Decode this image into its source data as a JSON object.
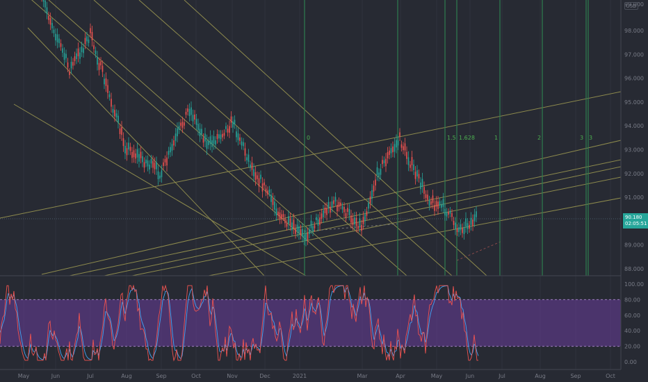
{
  "currency": "USD",
  "price_tag": {
    "price": "90.180",
    "countdown": "02:05:51"
  },
  "colors": {
    "bg": "#272a33",
    "trend": "#8d8a4d",
    "fib": "#2e7d4f",
    "up": "#26a69a",
    "down": "#ef5350",
    "stoch_k": "#ef5350",
    "stoch_d": "#42a5f5",
    "band": "#6a3d9a"
  },
  "price_axis": {
    "ticks": [
      "88.000",
      "89.000",
      "90.000",
      "91.000",
      "92.000",
      "93.000",
      "94.000",
      "95.000",
      "96.000",
      "97.000",
      "98.000"
    ],
    "top_label": "99.000"
  },
  "stoch_axis": {
    "ticks": [
      "0.00",
      "20.00",
      "40.00",
      "60.00",
      "80.00",
      "100.00"
    ]
  },
  "time_axis": {
    "labels": [
      "May",
      "Jun",
      "Jul",
      "Aug",
      "Sep",
      "Oct",
      "Nov",
      "Dec",
      "2021",
      "Mar",
      "Apr",
      "May",
      "Jun",
      "Jul",
      "Aug",
      "Sep",
      "Oct"
    ]
  },
  "fib_labels": [
    "0",
    "1.5",
    "1.628",
    "1",
    "2",
    "3",
    "3"
  ]
}
